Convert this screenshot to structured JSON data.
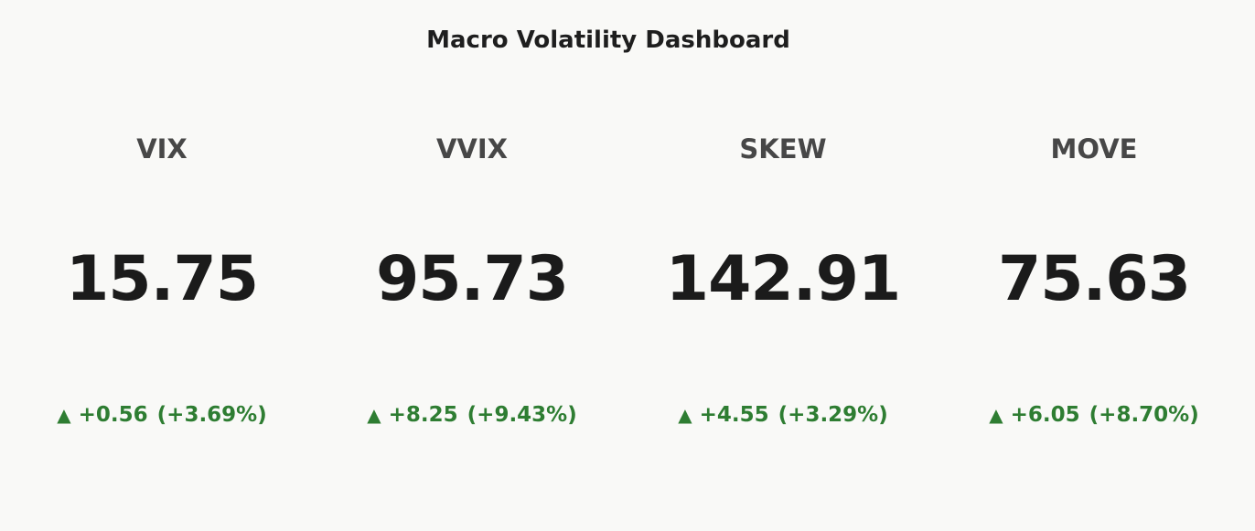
{
  "title": "Macro Volatility Dashboard",
  "colors": {
    "background": "#f9f9f7",
    "positive": "#2e7d32",
    "value": "#1b1b1b",
    "label": "#474747"
  },
  "chart_data": {
    "type": "table",
    "title": "Macro Volatility Dashboard",
    "indicators": [
      {
        "name": "VIX",
        "value": "15.75",
        "direction_icon": "up-triangle-icon",
        "change": "+0.56",
        "change_pct": "(+3.69%)"
      },
      {
        "name": "VVIX",
        "value": "95.73",
        "direction_icon": "up-triangle-icon",
        "change": "+8.25",
        "change_pct": "(+9.43%)"
      },
      {
        "name": "SKEW",
        "value": "142.91",
        "direction_icon": "up-triangle-icon",
        "change": "+4.55",
        "change_pct": "(+3.29%)"
      },
      {
        "name": "MOVE",
        "value": "75.63",
        "direction_icon": "up-triangle-icon",
        "change": "+6.05",
        "change_pct": "(+8.70%)"
      }
    ]
  }
}
